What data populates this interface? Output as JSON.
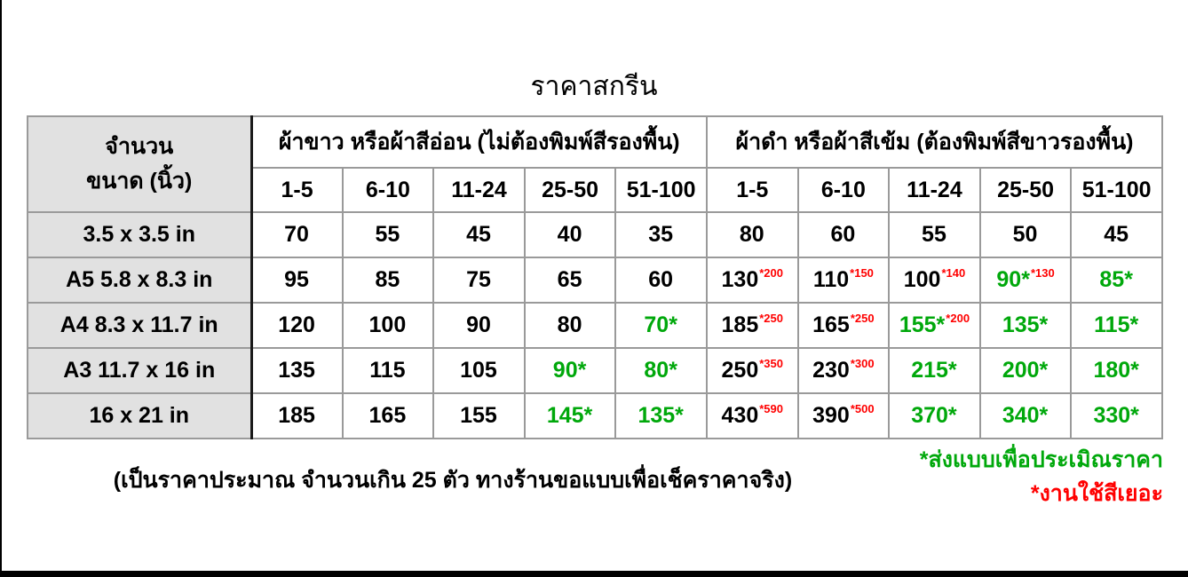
{
  "title": "ราคาสกรีน",
  "colors": {
    "promo_green": "#00a80b",
    "surcharge_red": "#ff0000",
    "header_fill": "#e1e1e1",
    "grid_border": "#9a9a9a"
  },
  "table": {
    "corner": {
      "line1": "จำนวน",
      "line2": "ขนาด (นิ้ว)"
    },
    "groups": [
      {
        "label": "ผ้าขาว หรือผ้าสีอ่อน (ไม่ต้องพิมพ์สีรองพื้น)"
      },
      {
        "label": "ผ้าดำ หรือผ้าสีเข้ม (ต้องพิมพ์สีขาวรองพื้น)"
      }
    ],
    "quantity_headers": [
      "1-5",
      "6-10",
      "11-24",
      "25-50",
      "51-100",
      "1-5",
      "6-10",
      "11-24",
      "25-50",
      "51-100"
    ],
    "rows": [
      {
        "size": "3.5 x 3.5 in",
        "cells": [
          {
            "text": "70"
          },
          {
            "text": "55"
          },
          {
            "text": "45"
          },
          {
            "text": "40"
          },
          {
            "text": "35"
          },
          {
            "text": "80"
          },
          {
            "text": "60"
          },
          {
            "text": "55"
          },
          {
            "text": "50"
          },
          {
            "text": "45"
          }
        ]
      },
      {
        "size": "A5 5.8 x 8.3 in",
        "cells": [
          {
            "text": "95"
          },
          {
            "text": "85"
          },
          {
            "text": "75"
          },
          {
            "text": "65"
          },
          {
            "text": "60"
          },
          {
            "text": "130",
            "sup": "*200"
          },
          {
            "text": "110",
            "sup": "*150"
          },
          {
            "text": "100",
            "sup": "*140"
          },
          {
            "text": "90*",
            "color": "green",
            "sup": "*130"
          },
          {
            "text": "85*",
            "color": "green"
          }
        ]
      },
      {
        "size": "A4 8.3 x 11.7 in",
        "cells": [
          {
            "text": "120"
          },
          {
            "text": "100"
          },
          {
            "text": "90"
          },
          {
            "text": "80"
          },
          {
            "text": "70*",
            "color": "green"
          },
          {
            "text": "185",
            "sup": "*250"
          },
          {
            "text": "165",
            "sup": "*250"
          },
          {
            "text": "155*",
            "color": "green",
            "sup": "*200"
          },
          {
            "text": "135*",
            "color": "green"
          },
          {
            "text": "115*",
            "color": "green"
          }
        ]
      },
      {
        "size": "A3 11.7 x 16 in",
        "cells": [
          {
            "text": "135"
          },
          {
            "text": "115"
          },
          {
            "text": "105"
          },
          {
            "text": "90*",
            "color": "green"
          },
          {
            "text": "80*",
            "color": "green"
          },
          {
            "text": "250",
            "sup": "*350"
          },
          {
            "text": "230",
            "sup": "*300"
          },
          {
            "text": "215*",
            "color": "green"
          },
          {
            "text": "200*",
            "color": "green"
          },
          {
            "text": "180*",
            "color": "green"
          }
        ]
      },
      {
        "size": "16 x 21 in",
        "cells": [
          {
            "text": "185"
          },
          {
            "text": "165"
          },
          {
            "text": "155"
          },
          {
            "text": "145*",
            "color": "green"
          },
          {
            "text": "135*",
            "color": "green"
          },
          {
            "text": "430",
            "sup": "*590"
          },
          {
            "text": "390",
            "sup": "*500"
          },
          {
            "text": "370*",
            "color": "green"
          },
          {
            "text": "340*",
            "color": "green"
          },
          {
            "text": "330*",
            "color": "green"
          }
        ]
      }
    ]
  },
  "footer": {
    "note": "(เป็นราคาประมาณ จำนวนเกิน 25 ตัว ทางร้านขอแบบเพื่อเช็คราคาจริง)",
    "green_note": "*ส่งแบบเพื่อประเมิณราคา",
    "red_note": "*งานใช้สีเยอะ"
  }
}
